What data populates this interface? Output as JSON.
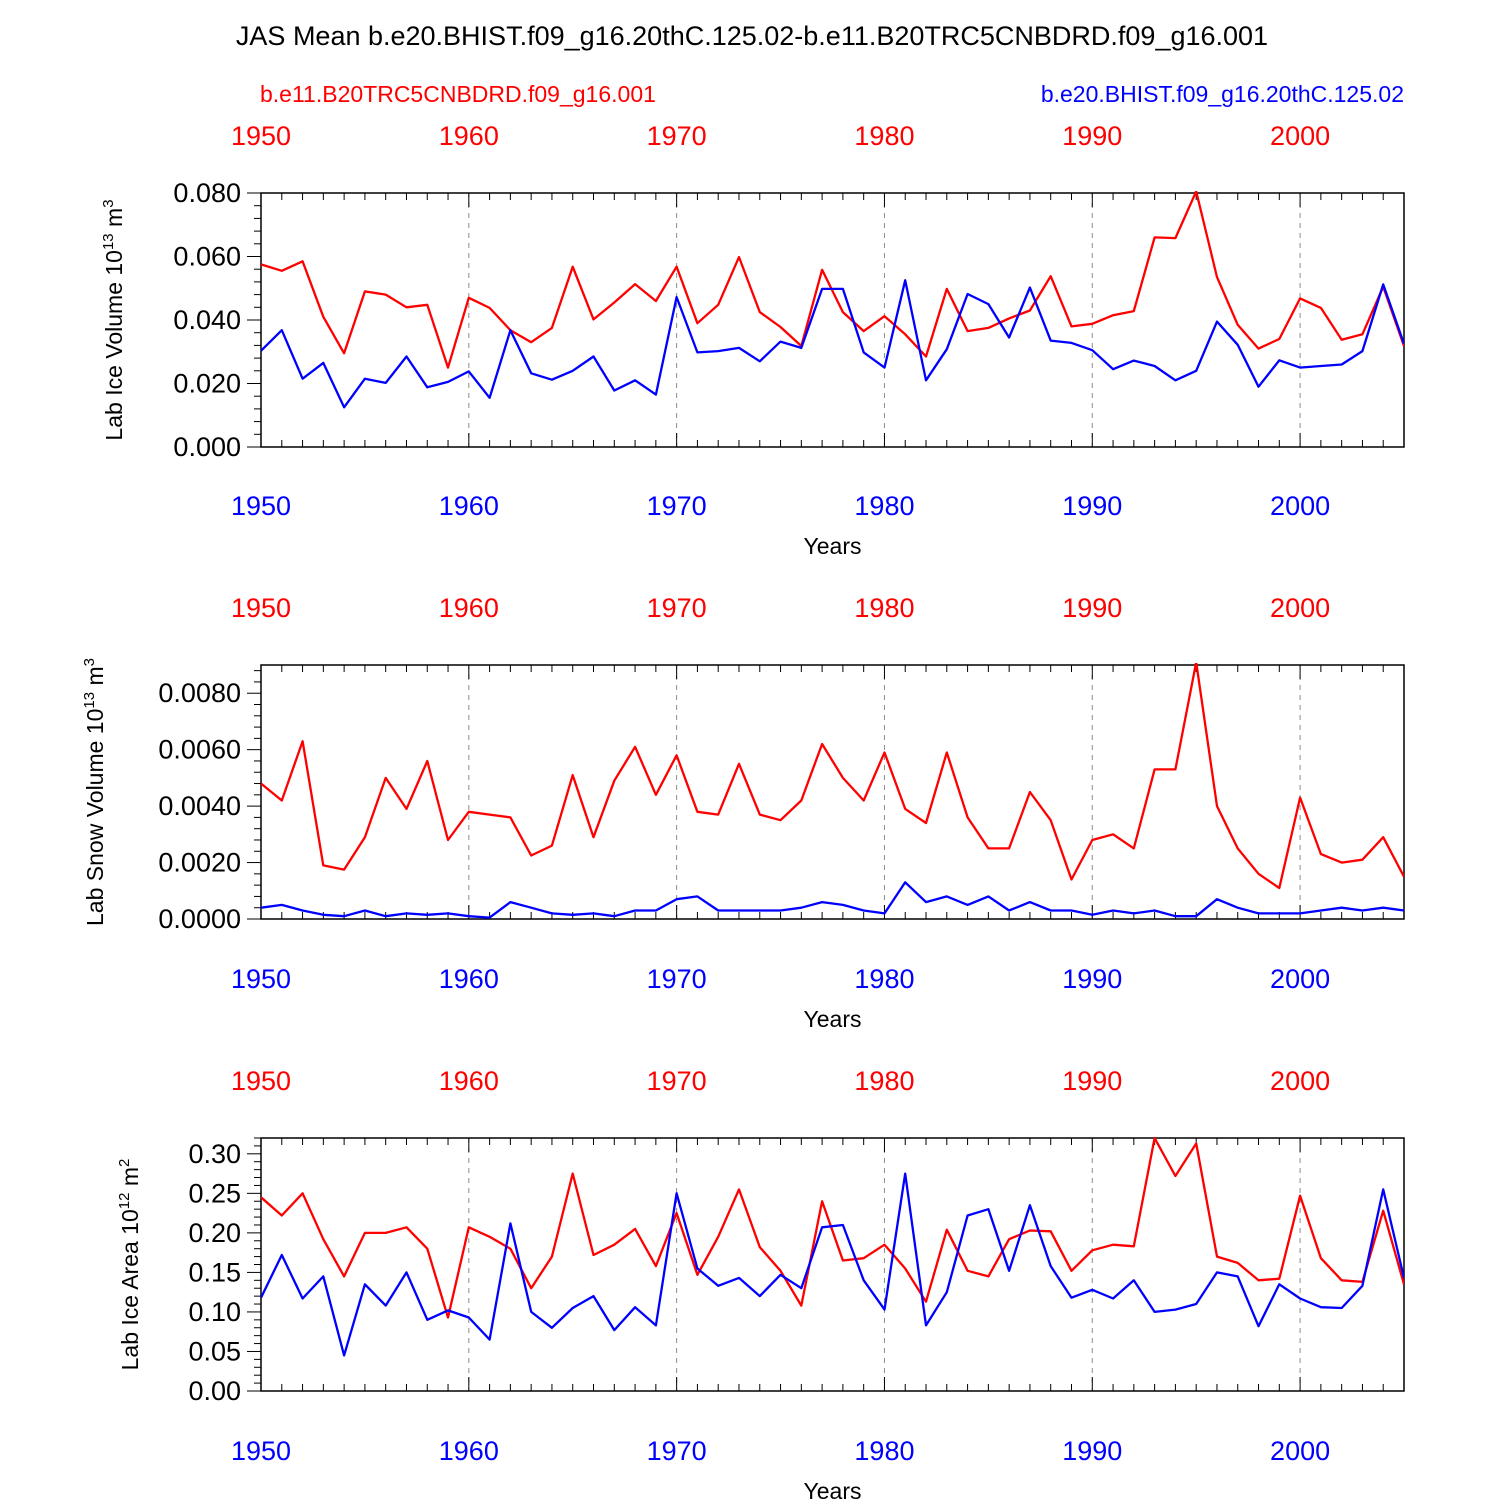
{
  "title": "JAS Mean b.e20.BHIST.f09_g16.20thC.125.02-b.e11.B20TRC5CNBDRD.f09_g16.001",
  "legend": {
    "left": "b.e11.B20TRC5CNBDRD.f09_g16.001",
    "right": "b.e20.BHIST.f09_g16.20thC.125.02"
  },
  "colors": {
    "red": "#ff0000",
    "blue": "#0000ff",
    "axis": "#000000",
    "grid": "#8c8c8c"
  },
  "xaxis_label": "Years",
  "chart_data": [
    {
      "type": "line",
      "name": "ice-volume",
      "ylabel": "Lab Ice Volume 10",
      "ylabel_sup": "13",
      "ylabel_unit": "m",
      "ylabel_unit_sup": "3",
      "xlim": [
        1950,
        2005
      ],
      "ylim": [
        0,
        0.08
      ],
      "yticks": [
        0,
        0.02,
        0.04,
        0.06,
        0.08
      ],
      "ytick_labels": [
        "0.000",
        "0.020",
        "0.040",
        "0.060",
        "0.080"
      ],
      "xticks": [
        1950,
        1960,
        1970,
        1980,
        1990,
        2000
      ],
      "xtick_labels": [
        "1950",
        "1960",
        "1970",
        "1980",
        "1990",
        "2000"
      ],
      "x_start": 1950,
      "series": [
        {
          "name": "b.e11.B20TRC5CNBDRD.f09_g16.001",
          "color": "#ff0000",
          "values": [
            0.0575,
            0.0555,
            0.0585,
            0.041,
            0.0295,
            0.049,
            0.048,
            0.044,
            0.0448,
            0.025,
            0.047,
            0.0438,
            0.0368,
            0.033,
            0.0375,
            0.0568,
            0.0402,
            0.0455,
            0.0513,
            0.046,
            0.0568,
            0.039,
            0.0448,
            0.0598,
            0.0425,
            0.0378,
            0.0318,
            0.0558,
            0.0425,
            0.0365,
            0.0412,
            0.0355,
            0.0285,
            0.0498,
            0.0365,
            0.0375,
            0.0405,
            0.043,
            0.0538,
            0.038,
            0.0388,
            0.0415,
            0.0428,
            0.066,
            0.0658,
            0.0805,
            0.0535,
            0.0385,
            0.031,
            0.034,
            0.0468,
            0.0438,
            0.0338,
            0.0355,
            0.0505,
            0.0318
          ]
        },
        {
          "name": "b.e20.BHIST.f09_g16.20thC.125.02",
          "color": "#0000ff",
          "values": [
            0.0303,
            0.0368,
            0.0215,
            0.0265,
            0.0125,
            0.0215,
            0.0202,
            0.0285,
            0.0188,
            0.0205,
            0.0238,
            0.0155,
            0.0368,
            0.0232,
            0.0212,
            0.024,
            0.0285,
            0.0178,
            0.021,
            0.0165,
            0.0472,
            0.0298,
            0.0302,
            0.0312,
            0.027,
            0.0332,
            0.0312,
            0.0498,
            0.0498,
            0.0298,
            0.025,
            0.0525,
            0.021,
            0.0308,
            0.0482,
            0.045,
            0.0345,
            0.0502,
            0.0335,
            0.0328,
            0.0305,
            0.0245,
            0.0272,
            0.0255,
            0.021,
            0.024,
            0.0395,
            0.0322,
            0.019,
            0.0273,
            0.025,
            0.0255,
            0.026,
            0.0302,
            0.0512,
            0.0325
          ]
        }
      ]
    },
    {
      "type": "line",
      "name": "snow-volume",
      "ylabel": "Lab Snow Volume 10",
      "ylabel_sup": "13",
      "ylabel_unit": "m",
      "ylabel_unit_sup": "3",
      "xlim": [
        1950,
        2005
      ],
      "ylim": [
        0,
        0.009
      ],
      "yticks": [
        0,
        0.002,
        0.004,
        0.006,
        0.008
      ],
      "ytick_labels": [
        "0.0000",
        "0.0020",
        "0.0040",
        "0.0060",
        "0.0080"
      ],
      "xticks": [
        1950,
        1960,
        1970,
        1980,
        1990,
        2000
      ],
      "xtick_labels": [
        "1950",
        "1960",
        "1970",
        "1980",
        "1990",
        "2000"
      ],
      "x_start": 1950,
      "series": [
        {
          "name": "b.e11.B20TRC5CNBDRD.f09_g16.001",
          "color": "#ff0000",
          "values": [
            0.0048,
            0.0042,
            0.0063,
            0.0019,
            0.00175,
            0.0029,
            0.005,
            0.0039,
            0.0056,
            0.0028,
            0.0038,
            0.0037,
            0.0036,
            0.00225,
            0.0026,
            0.0051,
            0.0029,
            0.0049,
            0.0061,
            0.0044,
            0.0058,
            0.0038,
            0.0037,
            0.0055,
            0.0037,
            0.0035,
            0.0042,
            0.0062,
            0.005,
            0.0042,
            0.0059,
            0.0039,
            0.0034,
            0.0059,
            0.0036,
            0.0025,
            0.0025,
            0.0045,
            0.0035,
            0.0014,
            0.0028,
            0.003,
            0.0025,
            0.0053,
            0.0053,
            0.0091,
            0.004,
            0.0025,
            0.0016,
            0.0011,
            0.0043,
            0.0023,
            0.002,
            0.0021,
            0.0029,
            0.0015
          ]
        },
        {
          "name": "b.e20.BHIST.f09_g16.20thC.125.02",
          "color": "#0000ff",
          "values": [
            0.0004,
            0.0005,
            0.0003,
            0.00015,
            0.0001,
            0.0003,
            0.0001,
            0.0002,
            0.00015,
            0.0002,
            0.0001,
            5e-05,
            0.0006,
            0.0004,
            0.0002,
            0.00015,
            0.0002,
            0.0001,
            0.0003,
            0.0003,
            0.0007,
            0.0008,
            0.0003,
            0.0003,
            0.0003,
            0.0003,
            0.0004,
            0.0006,
            0.0005,
            0.0003,
            0.0002,
            0.0013,
            0.0006,
            0.0008,
            0.0005,
            0.0008,
            0.0003,
            0.0006,
            0.0003,
            0.0003,
            0.00015,
            0.0003,
            0.0002,
            0.0003,
            0.0001,
            0.0001,
            0.0007,
            0.0004,
            0.0002,
            0.0002,
            0.0002,
            0.0003,
            0.0004,
            0.0003,
            0.0004,
            0.0003
          ]
        }
      ]
    },
    {
      "type": "line",
      "name": "ice-area",
      "ylabel": "Lab Ice Area 10",
      "ylabel_sup": "12",
      "ylabel_unit": "m",
      "ylabel_unit_sup": "2",
      "xlim": [
        1950,
        2005
      ],
      "ylim": [
        0,
        0.32
      ],
      "yticks": [
        0,
        0.05,
        0.1,
        0.15,
        0.2,
        0.25,
        0.3
      ],
      "ytick_labels": [
        "0.00",
        "0.05",
        "0.10",
        "0.15",
        "0.20",
        "0.25",
        "0.30"
      ],
      "xticks": [
        1950,
        1960,
        1970,
        1980,
        1990,
        2000
      ],
      "xtick_labels": [
        "1950",
        "1960",
        "1970",
        "1980",
        "1990",
        "2000"
      ],
      "x_start": 1950,
      "series": [
        {
          "name": "b.e11.B20TRC5CNBDRD.f09_g16.001",
          "color": "#ff0000",
          "values": [
            0.245,
            0.222,
            0.25,
            0.192,
            0.145,
            0.2,
            0.2,
            0.207,
            0.18,
            0.093,
            0.207,
            0.195,
            0.18,
            0.13,
            0.17,
            0.275,
            0.172,
            0.185,
            0.205,
            0.158,
            0.225,
            0.147,
            0.195,
            0.255,
            0.182,
            0.152,
            0.108,
            0.24,
            0.165,
            0.168,
            0.185,
            0.155,
            0.113,
            0.204,
            0.152,
            0.145,
            0.192,
            0.203,
            0.202,
            0.152,
            0.178,
            0.185,
            0.183,
            0.32,
            0.272,
            0.313,
            0.17,
            0.162,
            0.14,
            0.142,
            0.247,
            0.168,
            0.14,
            0.138,
            0.228,
            0.135
          ]
        },
        {
          "name": "b.e20.BHIST.f09_g16.20thC.125.02",
          "color": "#0000ff",
          "values": [
            0.118,
            0.172,
            0.117,
            0.145,
            0.045,
            0.135,
            0.108,
            0.15,
            0.09,
            0.102,
            0.093,
            0.065,
            0.212,
            0.1,
            0.08,
            0.105,
            0.12,
            0.077,
            0.106,
            0.083,
            0.25,
            0.155,
            0.133,
            0.143,
            0.12,
            0.147,
            0.13,
            0.207,
            0.21,
            0.14,
            0.103,
            0.275,
            0.083,
            0.125,
            0.222,
            0.23,
            0.152,
            0.235,
            0.158,
            0.118,
            0.128,
            0.117,
            0.14,
            0.1,
            0.103,
            0.11,
            0.15,
            0.145,
            0.082,
            0.135,
            0.117,
            0.106,
            0.105,
            0.133,
            0.255,
            0.143
          ]
        }
      ]
    }
  ]
}
